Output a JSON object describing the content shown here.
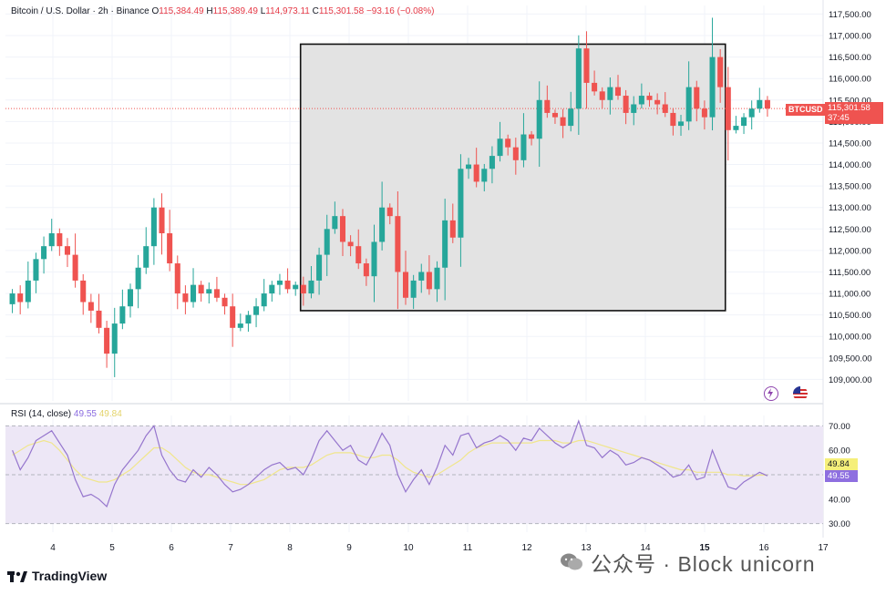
{
  "legend": {
    "symbol": "Bitcoin / U.S. Dollar · 2h · Binance",
    "o_label": "O",
    "o": "115,384.49",
    "h_label": "H",
    "h": "115,389.49",
    "l_label": "L",
    "l": "114,973.11",
    "c_label": "C",
    "c": "115,301.58",
    "change": "−93.16 (−0.08%)"
  },
  "price_tag": {
    "symbol": "BTCUSD",
    "price": "115,301.58",
    "countdown": "37:45"
  },
  "rsi_legend": {
    "name": "RSI (14, close)",
    "rsi": "49.55",
    "ma": "49.84"
  },
  "rsi_tags": {
    "ma": "49.84",
    "rsi": "49.55"
  },
  "branding": {
    "logo_text": "TradingView",
    "watermark": "公众号 · Block unicorn"
  },
  "icons": [
    "lightning-icon",
    "flag-icon",
    "tradingview-logo-icon",
    "wechat-icon"
  ],
  "colors": {
    "up": "#26a69a",
    "down": "#ef5350",
    "rsi_line": "#9575cd",
    "rsi_ma": "#f0e68c",
    "box_fill": "#e3e3e3",
    "rsi_band": "#ede7f6"
  },
  "chart_data": [
    {
      "type": "candlestick",
      "title": "Bitcoin / U.S. Dollar · 2h · Binance",
      "ylim": [
        108500,
        117700
      ],
      "yticks": [
        109000,
        109500,
        110000,
        110500,
        111000,
        111500,
        112000,
        112500,
        113000,
        113500,
        114000,
        114500,
        115000,
        115500,
        116000,
        116500,
        117000,
        117500
      ],
      "ytick_labels": [
        "109,000.00",
        "109,500.00",
        "110,000.00",
        "110,500.00",
        "111,000.00",
        "111,500.00",
        "112,000.00",
        "112,500.00",
        "113,000.00",
        "113,500.00",
        "114,000.00",
        "114,500.00",
        "115,000.00",
        "115,500.00",
        "116,000.00",
        "116,500.00",
        "117,000.00",
        "117,500.00"
      ],
      "xlim": [
        3.2,
        17
      ],
      "xticks": [
        4,
        5,
        6,
        7,
        8,
        9,
        10,
        11,
        12,
        13,
        14,
        15,
        16,
        17
      ],
      "xtick_labels": [
        "4",
        "5",
        "6",
        "7",
        "8",
        "9",
        "10",
        "11",
        "12",
        "13",
        "14",
        "15",
        "16",
        "17"
      ],
      "grid": true,
      "last_price": 115301.58,
      "highlight_box": {
        "x0": 8.18,
        "x1": 15.35,
        "y0": 110600,
        "y1": 116800
      },
      "closes": [
        111000,
        110800,
        111300,
        111800,
        112100,
        112400,
        112100,
        111900,
        111300,
        110800,
        110600,
        110200,
        109600,
        110300,
        110700,
        111100,
        111600,
        112100,
        113000,
        112400,
        111700,
        111000,
        110800,
        111200,
        111000,
        111100,
        110900,
        110700,
        110200,
        110300,
        110500,
        110700,
        111000,
        111200,
        111300,
        111100,
        111200,
        111000,
        111300,
        111900,
        112500,
        112800,
        112200,
        112100,
        111700,
        111400,
        112200,
        113000,
        112800,
        111500,
        110900,
        111300,
        111500,
        111100,
        111600,
        112700,
        112300,
        113900,
        114000,
        113600,
        113900,
        114200,
        114600,
        114400,
        114100,
        114700,
        114600,
        115500,
        115200,
        115100,
        114900,
        115300,
        116700,
        115900,
        115700,
        115500,
        115800,
        115600,
        115200,
        115400,
        115600,
        115500,
        115400,
        115200,
        114900,
        115000,
        115800,
        115300,
        115100,
        116500,
        115800,
        114800,
        114900,
        115100,
        115300,
        115500,
        115301.58
      ],
      "series": [
        {
          "name": "BTCUSD",
          "values": "see closes"
        }
      ]
    },
    {
      "type": "line",
      "title": "RSI (14, close)",
      "ylim": [
        28,
        72
      ],
      "yticks": [
        30,
        40,
        50,
        60,
        70
      ],
      "ytick_labels": [
        "30.00",
        "40.00",
        "50.00",
        "60.00",
        "70.00"
      ],
      "bands": [
        30,
        50,
        70
      ],
      "series": [
        {
          "name": "RSI",
          "values": [
            60,
            52,
            57,
            64,
            66,
            68,
            63,
            58,
            48,
            41,
            42,
            40,
            37,
            46,
            52,
            56,
            60,
            66,
            70,
            58,
            52,
            48,
            47,
            52,
            49,
            53,
            50,
            46,
            43,
            44,
            46,
            49,
            52,
            54,
            55,
            52,
            53,
            50,
            56,
            64,
            68,
            64,
            60,
            62,
            56,
            54,
            60,
            67,
            62,
            50,
            43,
            48,
            52,
            46,
            53,
            62,
            58,
            66,
            67,
            61,
            63,
            64,
            66,
            64,
            60,
            65,
            64,
            69,
            66,
            63,
            61,
            63,
            72,
            62,
            61,
            57,
            60,
            58,
            54,
            55,
            57,
            56,
            54,
            52,
            49,
            50,
            54,
            48,
            49,
            60,
            52,
            45,
            44,
            47,
            49,
            51,
            49.55
          ]
        },
        {
          "name": "RSI-based MA",
          "values": [
            58,
            60,
            62,
            63,
            64,
            63,
            60,
            56,
            52,
            49,
            48,
            47,
            47,
            48,
            50,
            52,
            55,
            58,
            61,
            61,
            59,
            56,
            53,
            51,
            50,
            50,
            49,
            48,
            47,
            46,
            46,
            47,
            48,
            50,
            52,
            53,
            53,
            53,
            54,
            56,
            58,
            59,
            59,
            59,
            58,
            57,
            57,
            58,
            58,
            56,
            53,
            51,
            50,
            49,
            50,
            52,
            54,
            56,
            59,
            61,
            62,
            63,
            63,
            63,
            63,
            63,
            63,
            64,
            64,
            64,
            63,
            63,
            64,
            64,
            63,
            62,
            61,
            60,
            59,
            58,
            57,
            56,
            55,
            54,
            53,
            52,
            52,
            51,
            51,
            51,
            51,
            50,
            50,
            49.5,
            49.6,
            49.8,
            49.84
          ]
        }
      ]
    }
  ]
}
